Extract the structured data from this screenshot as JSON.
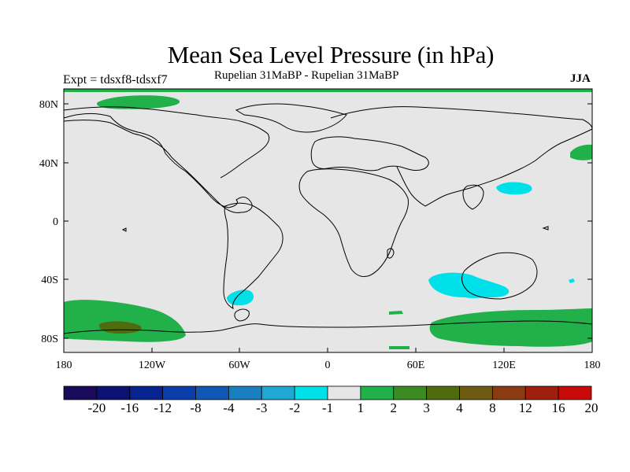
{
  "figure": {
    "title": "Mean Sea Level Pressure (in hPa)",
    "left_label": "Expt = tdsxf8-tdsxf7",
    "center_label": "Rupelian  31MaBP - Rupelian  31MaBP",
    "right_label": "JJA"
  },
  "axes": {
    "lat_ticks": [
      "80N",
      "40N",
      "0",
      "40S",
      "80S"
    ],
    "lon_ticks": [
      "180",
      "120W",
      "60W",
      "0",
      "60E",
      "120E",
      "180"
    ]
  },
  "colorbar": {
    "labels": [
      "-20",
      "-16",
      "-12",
      "-8",
      "-4",
      "-3",
      "-2",
      "-1",
      "1",
      "2",
      "3",
      "4",
      "8",
      "12",
      "16",
      "20"
    ],
    "colors": [
      "#1a0a5a",
      "#0b1273",
      "#06238f",
      "#0a3ea8",
      "#1058b4",
      "#1a7fc0",
      "#1fa8d6",
      "#00e0e8",
      "#e6e6e6",
      "#22b04a",
      "#3c8a22",
      "#4f6b0e",
      "#6e5a10",
      "#8a3c10",
      "#a01e0e",
      "#c80a08"
    ]
  },
  "colors": {
    "background_field": "#e6e6e6",
    "positive_small": "#22b04a",
    "positive_mid": "#4f6b0e",
    "negative_small": "#00e0e8",
    "coast": "#000000"
  }
}
